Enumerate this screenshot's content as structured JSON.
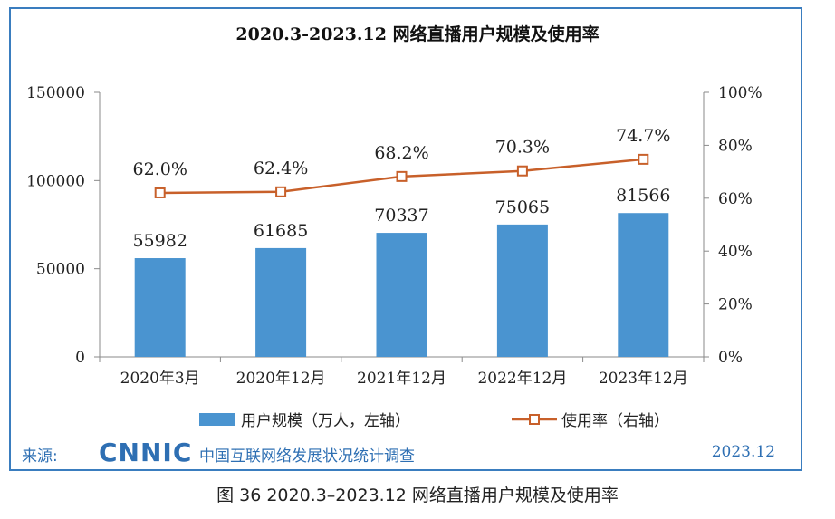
{
  "chart_data": {
    "type": "bar+line",
    "title": "2020.3-2023.12 网络直播用户规模及使用率",
    "categories": [
      "2020年3月",
      "2020年12月",
      "2021年12月",
      "2022年12月",
      "2023年12月"
    ],
    "series": [
      {
        "name": "用户规模（万人，左轴）",
        "type": "bar",
        "axis": "left",
        "values": [
          55982,
          61685,
          70337,
          75065,
          81566
        ],
        "labels": [
          "55982",
          "61685",
          "70337",
          "75065",
          "81566"
        ],
        "color": "#4a94d0"
      },
      {
        "name": "使用率（右轴）",
        "type": "line",
        "axis": "right",
        "values": [
          62.0,
          62.4,
          68.2,
          70.3,
          74.7
        ],
        "labels": [
          "62.0%",
          "62.4%",
          "68.2%",
          "70.3%",
          "74.7%"
        ],
        "color": "#c8602a"
      }
    ],
    "left_axis": {
      "ylim": [
        0,
        150000
      ],
      "ticks": [
        "0",
        "50000",
        "100000",
        "150000"
      ]
    },
    "right_axis": {
      "ylim": [
        0,
        100
      ],
      "ticks": [
        "0%",
        "20%",
        "40%",
        "60%",
        "80%",
        "100%"
      ]
    },
    "legend_position": "bottom",
    "grid": false
  },
  "footer": {
    "source_label": "来源:",
    "logo_text": "CNNIC",
    "org_name": "中国互联网络发展状况统计调查",
    "date": "2023.12"
  },
  "caption": "图 36  2020.3–2023.12 网络直播用户规模及使用率"
}
